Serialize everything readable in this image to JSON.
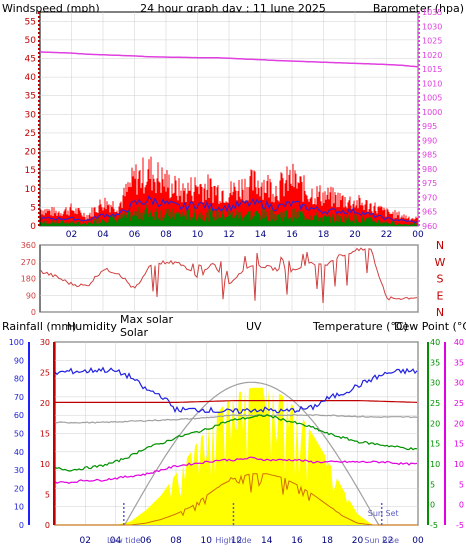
{
  "colors": {
    "bg": "#FFFFFF",
    "grid": "#CFCFCF",
    "wind_axis": "#C00000",
    "baro": "#E040E0",
    "dir": "#D04040",
    "rain_axis": "#2020FF",
    "humidity": "#2020E0",
    "max_solar": "#C00000",
    "solar": "#A0A0A0",
    "uv": "#D07000",
    "temp": "#009000",
    "dew": "#E000E0",
    "solar_fill": "#FFFF00",
    "gust": "#FF0000",
    "avg_wind": "#008000",
    "wind_blue": "#2020E0",
    "sun_marker": "#6060C0"
  },
  "chart_data": [
    {
      "type": "line",
      "title": "24 hour graph day : 11 June 2025",
      "left_label": "Windspeed (mph)",
      "right_label": "Barometer (hpa)",
      "left_ticks": [
        "0",
        "5",
        "10",
        "15",
        "20",
        "25",
        "30",
        "35",
        "40",
        "45",
        "50",
        "55"
      ],
      "right_ticks": [
        "960",
        "965",
        "970",
        "975",
        "980",
        "985",
        "990",
        "995",
        "1000",
        "1005",
        "1010",
        "1015",
        "1020",
        "1025",
        "1030",
        "1035"
      ],
      "x_ticks": [
        "02",
        "04",
        "06",
        "08",
        "10",
        "12",
        "14",
        "16",
        "18",
        "20",
        "22",
        "00"
      ],
      "ylim_left": [
        0,
        57.5
      ],
      "ylim_right": [
        960,
        1035
      ],
      "series": [
        {
          "name": "Barometer (hpa)",
          "x": [
            0,
            1,
            2,
            3,
            4,
            5,
            6,
            7,
            8,
            9,
            10,
            11,
            12,
            13,
            14,
            15,
            16,
            17,
            18,
            19,
            20,
            21,
            22,
            23,
            24
          ],
          "values": [
            1021,
            1020.8,
            1020.6,
            1020.2,
            1020,
            1019.8,
            1019.6,
            1019.3,
            1019.2,
            1019.1,
            1019,
            1019,
            1018.8,
            1018.5,
            1018.3,
            1018,
            1017.8,
            1017.6,
            1017.4,
            1017.2,
            1017,
            1016.8,
            1016.6,
            1016.3,
            1015.8
          ]
        },
        {
          "name": "Gust (mph)",
          "x": [
            0,
            1,
            2,
            3,
            4,
            5,
            6,
            7,
            8,
            9,
            10,
            11,
            12,
            13,
            14,
            15,
            16,
            17,
            18,
            19,
            20,
            21,
            22,
            23,
            24
          ],
          "values": [
            5,
            4,
            5,
            3,
            7,
            6,
            14,
            16,
            13,
            10,
            12,
            11,
            10,
            12,
            13,
            11,
            14,
            10,
            9,
            8,
            7,
            6,
            4,
            3,
            2
          ]
        },
        {
          "name": "Speed (mph)",
          "x": [
            0,
            1,
            2,
            3,
            4,
            5,
            6,
            7,
            8,
            9,
            10,
            11,
            12,
            13,
            14,
            15,
            16,
            17,
            18,
            19,
            20,
            21,
            22,
            23,
            24
          ],
          "values": [
            2,
            2,
            2,
            1.5,
            3,
            3,
            6,
            7,
            6,
            5,
            6,
            5,
            5,
            6,
            6,
            5,
            6,
            5,
            4,
            4,
            4,
            3,
            2,
            1.5,
            1
          ]
        },
        {
          "name": "Average (mph)",
          "x": [
            0,
            1,
            2,
            3,
            4,
            5,
            6,
            7,
            8,
            9,
            10,
            11,
            12,
            13,
            14,
            15,
            16,
            17,
            18,
            19,
            20,
            21,
            22,
            23,
            24
          ],
          "values": [
            1,
            1,
            1,
            0.5,
            2,
            2,
            3,
            4,
            3,
            3,
            3,
            3,
            3,
            3,
            3,
            3,
            3,
            3,
            2,
            2,
            2,
            1.5,
            1,
            0.5,
            0.5
          ]
        }
      ]
    },
    {
      "type": "line",
      "left_ticks": [
        "0",
        "90",
        "180",
        "270",
        "360"
      ],
      "right_ticks": [
        "N",
        "E",
        "S",
        "W",
        "N"
      ],
      "ylim": [
        0,
        360
      ],
      "series": [
        {
          "name": "Wind direction (deg)",
          "x": [
            0,
            1,
            2,
            3,
            4,
            5,
            6,
            7,
            8,
            9,
            10,
            11,
            12,
            13,
            14,
            15,
            16,
            17,
            18,
            19,
            20,
            21,
            22,
            23,
            24
          ],
          "values": [
            220,
            190,
            150,
            140,
            230,
            210,
            120,
            250,
            270,
            260,
            180,
            260,
            150,
            240,
            250,
            230,
            220,
            260,
            250,
            300,
            330,
            340,
            70,
            75,
            80
          ]
        }
      ]
    },
    {
      "type": "line",
      "headers": {
        "rainfall": "Rainfall (mm)",
        "humidity": "Humidity",
        "max_solar": "Max solar",
        "solar": "Solar",
        "uv": "UV",
        "temperature": "Temperature (°C)",
        "dew_point": "Dew Point (°C)"
      },
      "left_ticks": [
        "0",
        "10",
        "20",
        "30",
        "40",
        "50",
        "60",
        "70",
        "80",
        "90",
        "100"
      ],
      "rain_ticks": [
        "0",
        "5",
        "10",
        "15",
        "20",
        "25",
        "30"
      ],
      "right_ticks": [
        "-5",
        "0",
        "5",
        "10",
        "15",
        "20",
        "25",
        "30",
        "35",
        "40"
      ],
      "x_ticks": [
        "02",
        "04",
        "06",
        "08",
        "10",
        "12",
        "14",
        "16",
        "18",
        "20",
        "22",
        "00"
      ],
      "annotations": {
        "low_tide": "Low tide",
        "high_tide": "High tide",
        "sun_set": "Sun Set",
        "sun_rise": "Sun Rise"
      },
      "ylim_left": [
        0,
        100
      ],
      "ylim_right": [
        -5,
        40
      ],
      "series": [
        {
          "name": "Humidity",
          "x": [
            0,
            1,
            2,
            3,
            4,
            5,
            6,
            7,
            8,
            9,
            10,
            11,
            12,
            13,
            14,
            15,
            16,
            17,
            18,
            19,
            20,
            21,
            22,
            23,
            24
          ],
          "values": [
            83,
            84,
            84,
            85,
            84,
            81,
            74,
            71,
            63,
            63,
            63,
            62,
            62,
            63,
            63,
            62,
            63,
            64,
            69,
            72,
            76,
            80,
            83,
            84,
            84
          ]
        },
        {
          "name": "Max solar",
          "x": [
            0,
            4,
            8,
            12,
            16,
            20,
            24
          ],
          "values": [
            67,
            67,
            67,
            68,
            68,
            68,
            67
          ]
        },
        {
          "name": "Solar",
          "x": [
            0,
            3,
            6,
            9,
            12,
            15,
            18,
            21,
            24
          ],
          "values": [
            56,
            56,
            57,
            58,
            60,
            60,
            60,
            59,
            59
          ]
        },
        {
          "name": "Temperature (°C)",
          "x": [
            0,
            1,
            2,
            3,
            4,
            5,
            6,
            7,
            8,
            9,
            10,
            11,
            12,
            13,
            14,
            15,
            16,
            17,
            18,
            19,
            20,
            21,
            22,
            23,
            24
          ],
          "values": [
            9,
            8.5,
            9,
            9.5,
            10.5,
            12,
            14,
            15,
            16.5,
            17.5,
            18.5,
            20,
            21,
            21.5,
            22,
            21,
            20,
            19,
            17.5,
            16.5,
            15.5,
            15,
            14.5,
            14,
            13.5
          ]
        },
        {
          "name": "Dew Point (°C)",
          "x": [
            0,
            1,
            2,
            3,
            4,
            5,
            6,
            7,
            8,
            9,
            10,
            11,
            12,
            13,
            14,
            15,
            16,
            17,
            18,
            19,
            20,
            21,
            22,
            23,
            24
          ],
          "values": [
            5.5,
            5.5,
            6,
            6,
            6.5,
            7,
            7.5,
            8.5,
            9.5,
            10,
            10.5,
            11,
            11,
            11.5,
            11,
            11,
            11,
            10.5,
            10.5,
            10.5,
            10.5,
            10.5,
            10.5,
            10,
            10
          ]
        },
        {
          "name": "Solar radiation (area)",
          "x": [
            0,
            4,
            5,
            6,
            7,
            8,
            9,
            10,
            11,
            12,
            13,
            14,
            15,
            16,
            17,
            18,
            19,
            20,
            21,
            22,
            24
          ],
          "values": [
            0,
            0,
            2,
            8,
            16,
            28,
            40,
            52,
            64,
            72,
            75,
            75,
            71,
            63,
            50,
            36,
            20,
            6,
            0,
            0,
            0
          ]
        },
        {
          "name": "UV",
          "x": [
            0,
            5,
            6,
            7,
            8,
            9,
            10,
            11,
            12,
            13,
            14,
            15,
            16,
            17,
            18,
            19,
            20,
            21,
            24
          ],
          "values": [
            0,
            0,
            1,
            3,
            6,
            10,
            16,
            22,
            26,
            28,
            28,
            26,
            22,
            17,
            11,
            5,
            1,
            0,
            0
          ]
        }
      ]
    }
  ]
}
